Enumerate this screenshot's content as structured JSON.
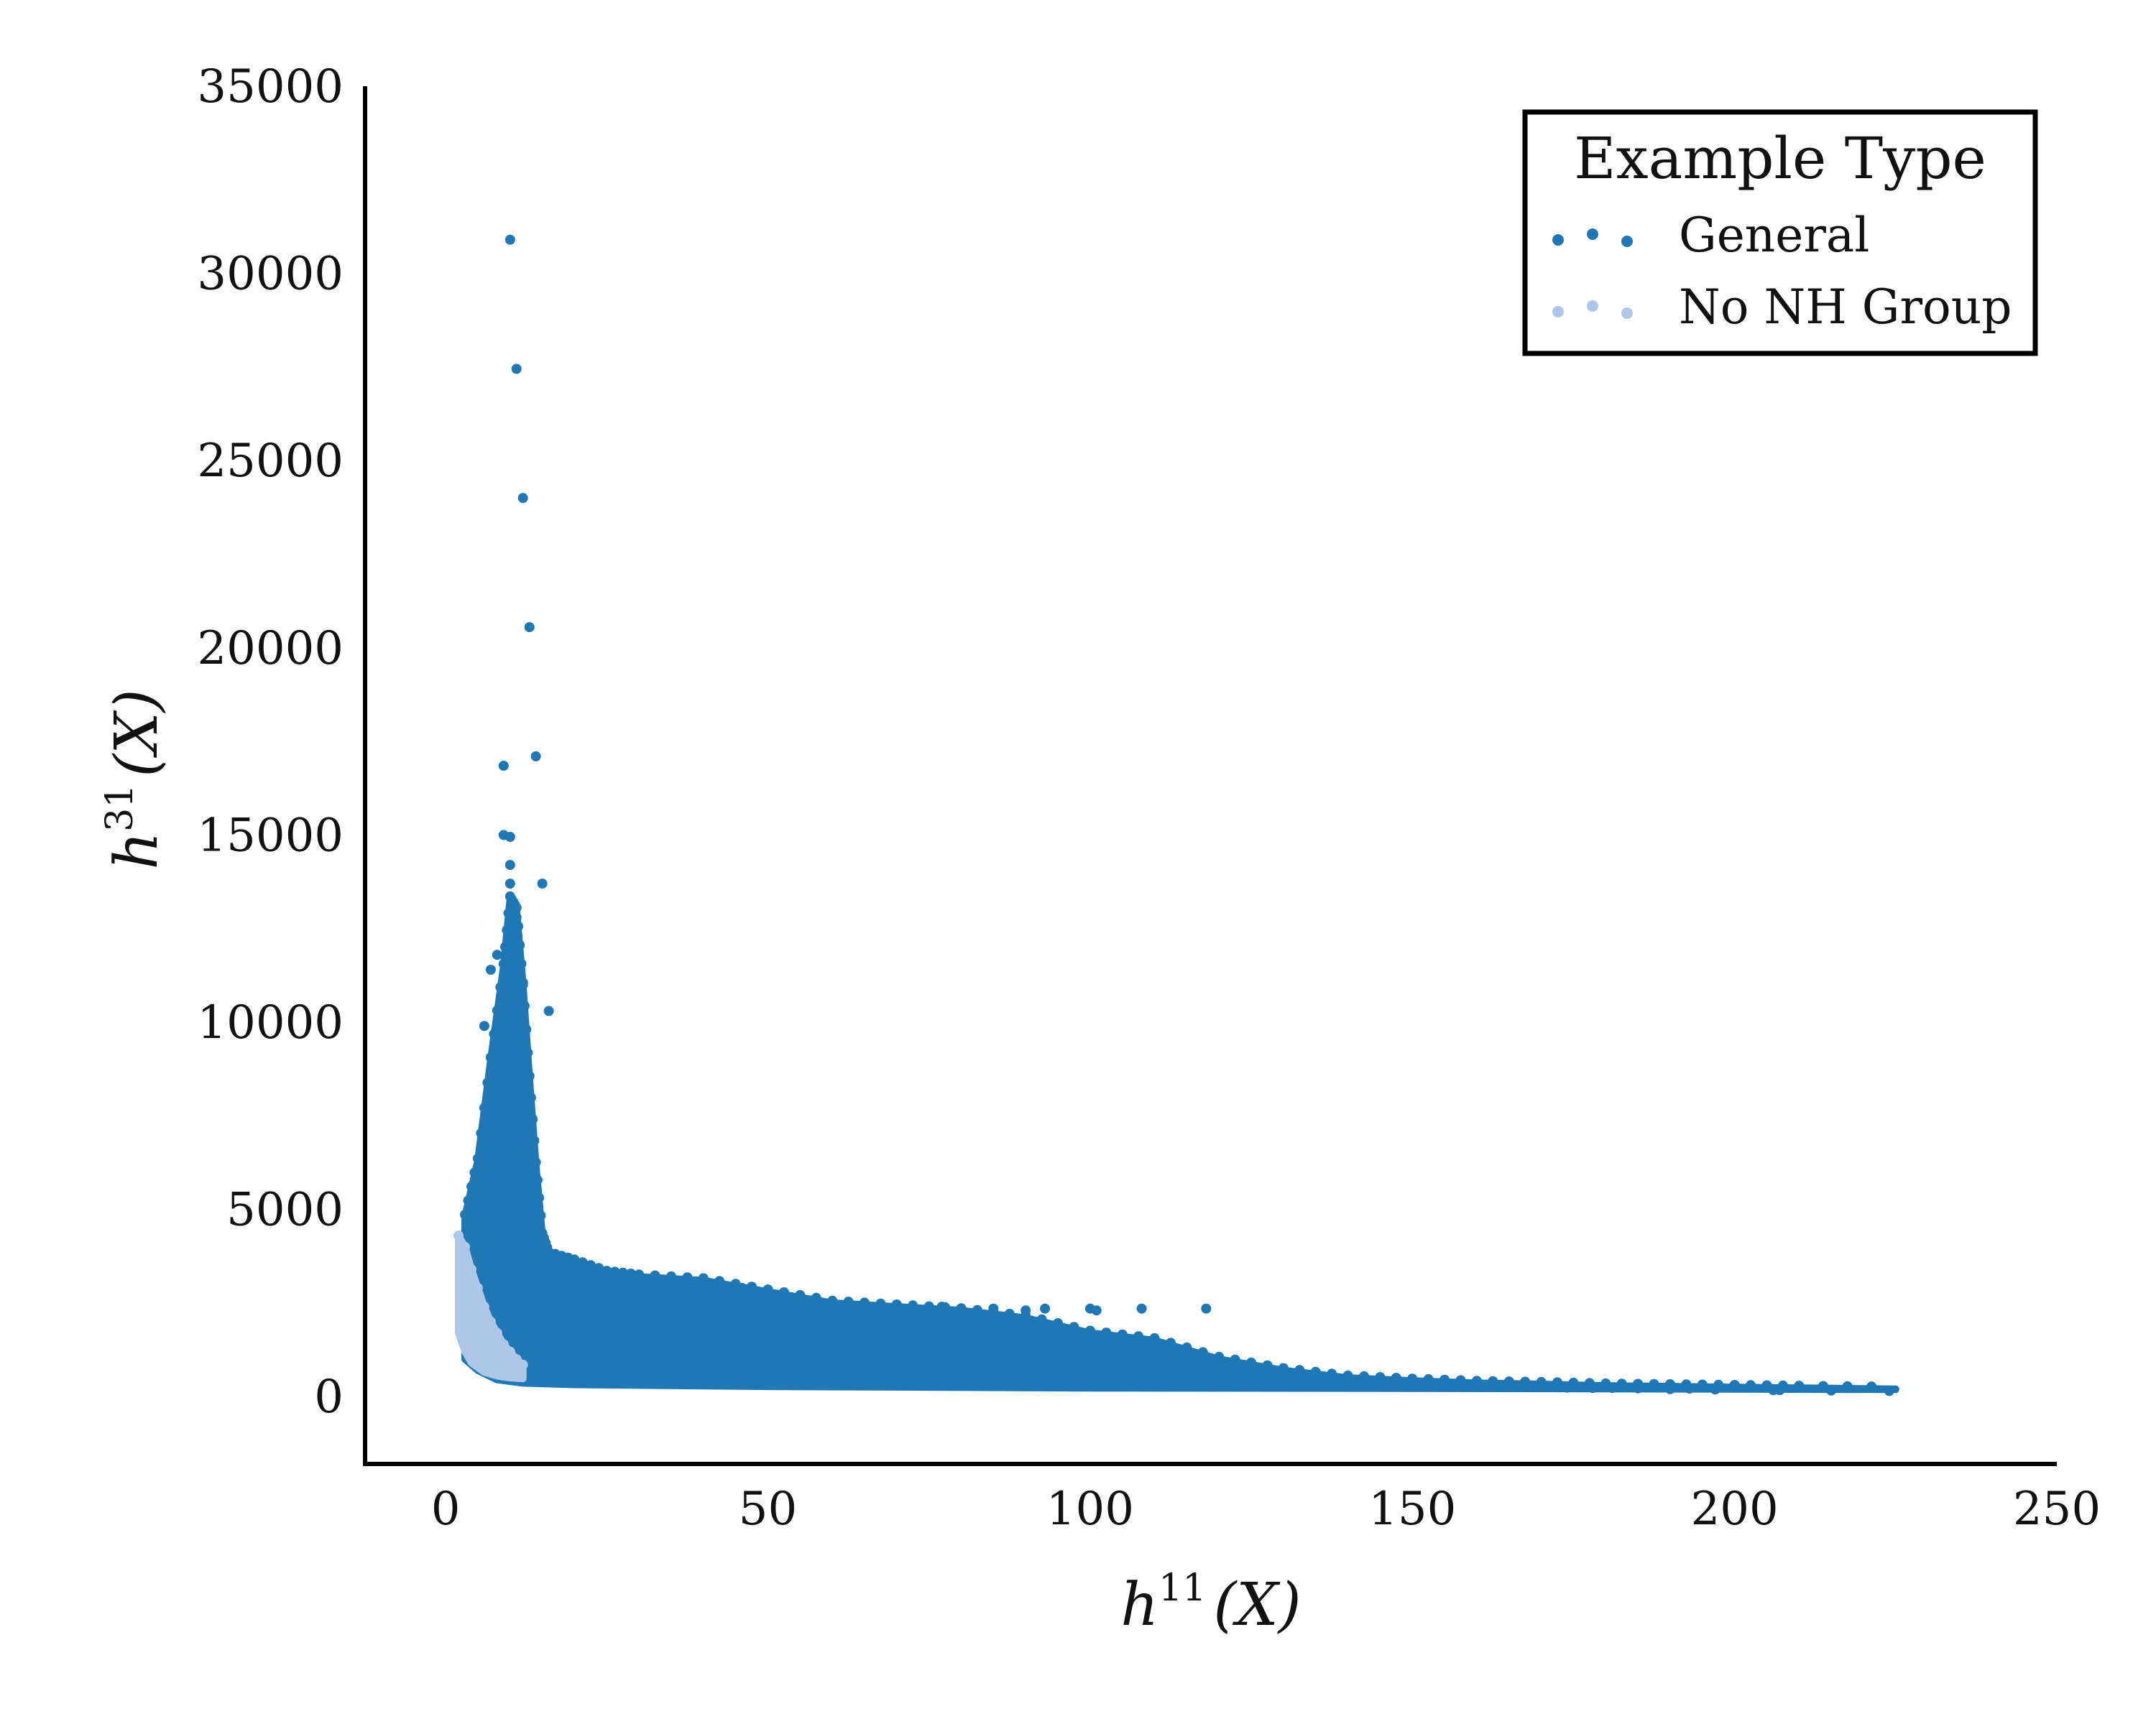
{
  "colors": {
    "general": "#1f77b4",
    "no_nh_group": "#aec7e8",
    "axis": "#000000",
    "background": "#ffffff"
  },
  "chart_data": {
    "type": "scatter",
    "title": "",
    "xlabel": "h11(X)",
    "ylabel": "h31(X)",
    "xlabel_parts": {
      "base": "h",
      "sup": "11",
      "arg": "(X)"
    },
    "ylabel_parts": {
      "base": "h",
      "sup": "31",
      "arg": "(X)"
    },
    "xlim": [
      -12.5,
      250
    ],
    "ylim": [
      -1800,
      35000
    ],
    "x_ticks": [
      0,
      50,
      100,
      150,
      200,
      250
    ],
    "y_ticks": [
      0,
      5000,
      10000,
      15000,
      20000,
      25000,
      30000,
      35000
    ],
    "grid": false,
    "legend": {
      "title": "Example Type",
      "placement": "top-right",
      "entries": [
        "General",
        "No NH Group"
      ]
    },
    "series": [
      {
        "name": "General",
        "color": "#1f77b4",
        "note_estimated": true,
        "outliers": [
          [
            10,
            30900
          ],
          [
            11,
            27450
          ],
          [
            12,
            24000
          ],
          [
            13,
            20550
          ],
          [
            14,
            17100
          ],
          [
            9,
            16850
          ],
          [
            15,
            13700
          ],
          [
            16,
            10300
          ],
          [
            6,
            9900
          ],
          [
            5,
            6100
          ],
          [
            9,
            15000
          ],
          [
            10,
            14950
          ],
          [
            10,
            14200
          ],
          [
            10,
            13700
          ],
          [
            11,
            12800
          ],
          [
            8,
            11800
          ],
          [
            7,
            11400
          ],
          [
            12,
            11000
          ]
        ],
        "envelope": [
          [
            3,
            4800
          ],
          [
            5,
            6300
          ],
          [
            7,
            9000
          ],
          [
            9,
            11500
          ],
          [
            10,
            13300
          ],
          [
            11,
            13000
          ],
          [
            12,
            11000
          ],
          [
            13,
            8500
          ],
          [
            14,
            6200
          ],
          [
            15,
            4300
          ],
          [
            16,
            3800
          ],
          [
            20,
            3600
          ],
          [
            25,
            3300
          ],
          [
            30,
            3200
          ],
          [
            40,
            3100
          ],
          [
            50,
            2800
          ],
          [
            60,
            2500
          ],
          [
            70,
            2400
          ],
          [
            80,
            2300
          ],
          [
            90,
            2100
          ],
          [
            100,
            1700
          ],
          [
            110,
            1500
          ],
          [
            120,
            1000
          ],
          [
            130,
            700
          ],
          [
            140,
            500
          ],
          [
            150,
            420
          ],
          [
            160,
            360
          ],
          [
            170,
            330
          ],
          [
            180,
            290
          ],
          [
            190,
            270
          ],
          [
            200,
            250
          ],
          [
            210,
            230
          ],
          [
            225,
            200
          ]
        ],
        "floor": [
          [
            3,
            1000
          ],
          [
            5,
            700
          ],
          [
            8,
            450
          ],
          [
            12,
            360
          ],
          [
            20,
            320
          ],
          [
            50,
            270
          ],
          [
            100,
            230
          ],
          [
            150,
            220
          ],
          [
            225,
            190
          ]
        ],
        "tail": [
          [
            160,
            290
          ],
          [
            163,
            320
          ],
          [
            165,
            300
          ],
          [
            168,
            280
          ],
          [
            170,
            270
          ],
          [
            174,
            240
          ],
          [
            178,
            230
          ],
          [
            181,
            230
          ],
          [
            185,
            220
          ],
          [
            190,
            200
          ],
          [
            193,
            210
          ],
          [
            197,
            190
          ],
          [
            206,
            170
          ],
          [
            207,
            170
          ],
          [
            215,
            160
          ],
          [
            224,
            150
          ]
        ],
        "spikes": [
          [
            75,
            2400
          ],
          [
            77,
            2400
          ],
          [
            85,
            2350
          ],
          [
            90,
            2300
          ],
          [
            93,
            2350
          ],
          [
            100,
            2350
          ],
          [
            101,
            2300
          ],
          [
            108,
            2350
          ],
          [
            118,
            2350
          ],
          [
            46,
            2900
          ],
          [
            55,
            2700
          ],
          [
            65,
            2450
          ]
        ]
      },
      {
        "name": "No NH Group",
        "color": "#aec7e8",
        "note_estimated": true,
        "envelope": [
          [
            2,
            4300
          ],
          [
            3,
            4000
          ],
          [
            4,
            3400
          ],
          [
            5,
            2900
          ],
          [
            6,
            2400
          ],
          [
            7,
            2000
          ],
          [
            8,
            1700
          ],
          [
            9,
            1400
          ],
          [
            10,
            1200
          ],
          [
            11,
            1000
          ],
          [
            12,
            850
          ]
        ],
        "floor": [
          [
            2,
            1700
          ],
          [
            3,
            1200
          ],
          [
            4,
            900
          ],
          [
            6,
            650
          ],
          [
            8,
            550
          ],
          [
            10,
            500
          ],
          [
            12,
            480
          ]
        ]
      }
    ]
  }
}
